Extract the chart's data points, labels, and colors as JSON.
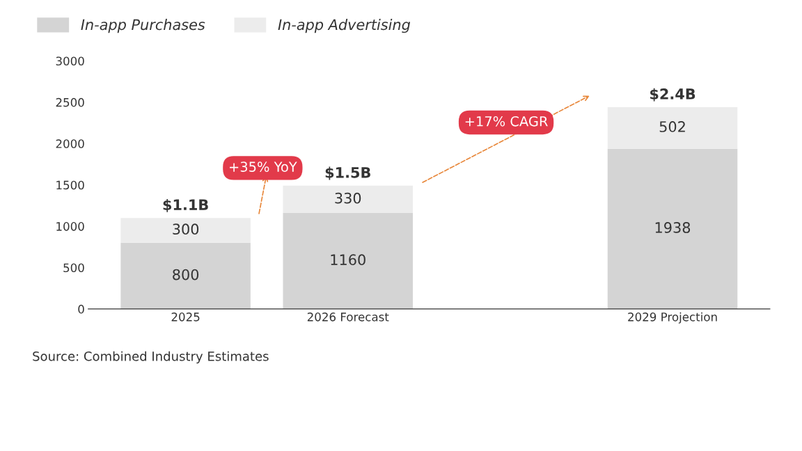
{
  "chart_data": {
    "type": "bar",
    "stacked": true,
    "categories": [
      "2025",
      "2026 Forecast",
      null,
      "2029 Projection"
    ],
    "series": [
      {
        "name": "In-app Purchases",
        "color": "#d4d4d4",
        "values": [
          800,
          1160,
          null,
          1938
        ]
      },
      {
        "name": "In-app Advertising",
        "color": "#ececec",
        "values": [
          300,
          330,
          null,
          502
        ]
      }
    ],
    "data_labels": true,
    "totals": [
      "$1.1B",
      "$1.5B",
      null,
      "$2.4B"
    ],
    "ylim": [
      0,
      3000
    ],
    "yticks": [
      0,
      500,
      1000,
      1500,
      2000,
      2500,
      3000
    ],
    "grid": false,
    "legend": "top left",
    "annotations": [
      "+35% YoY",
      "+17% CAGR",
      "Source: Combined Industry Estimates"
    ]
  }
}
